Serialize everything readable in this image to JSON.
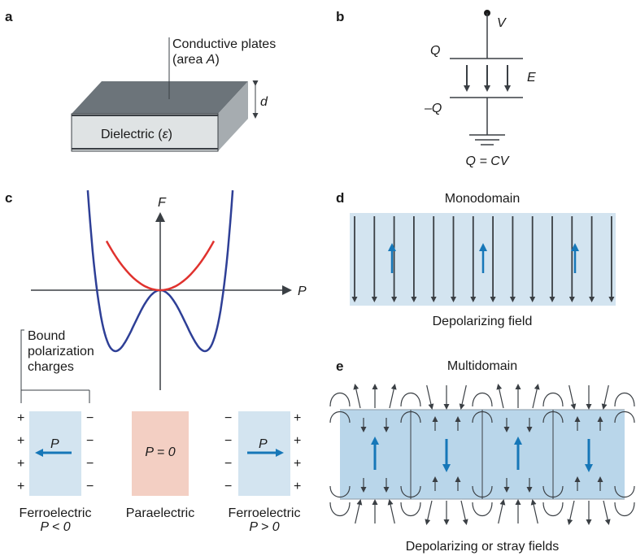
{
  "panels": {
    "a": {
      "letter": "a",
      "plates_label_1": "Conductive plates",
      "plates_label_2_prefix": "(area ",
      "plates_label_2_var": "A",
      "plates_label_2_suffix": ")",
      "dielectric_prefix": "Dielectric (",
      "dielectric_var": "ε",
      "dielectric_suffix": ")",
      "thickness": "d"
    },
    "b": {
      "letter": "b",
      "voltage": "V",
      "charge_top": "Q",
      "charge_bottom": "–Q",
      "field": "E",
      "equation": "Q = CV"
    },
    "c": {
      "letter": "c",
      "y_axis": "F",
      "x_axis": "P",
      "bound_1": "Bound",
      "bound_2": "polarization",
      "bound_3": "charges",
      "p_symbol": "P",
      "p_zero": "P = 0",
      "left_caption_1": "Ferroelectric",
      "left_caption_2": "P < 0",
      "mid_caption": "Paraelectric",
      "right_caption_1": "Ferroelectric",
      "right_caption_2": "P > 0",
      "plus": "+",
      "minus": "−"
    },
    "d": {
      "letter": "d",
      "title": "Monodomain",
      "caption": "Depolarizing field"
    },
    "e": {
      "letter": "e",
      "title": "Multidomain",
      "caption": "Depolarizing or stray fields"
    }
  },
  "colors": {
    "dark": "#3a3f44",
    "plate": "#6c747a",
    "dielectric": "#dfe3e4",
    "blue_curve": "#2e3f96",
    "red_curve": "#e0322e",
    "light_blue": "#d3e4f0",
    "domain_blue": "#b9d6ea",
    "arrow_blue": "#1677b8",
    "pink": "#f3cfc3"
  }
}
